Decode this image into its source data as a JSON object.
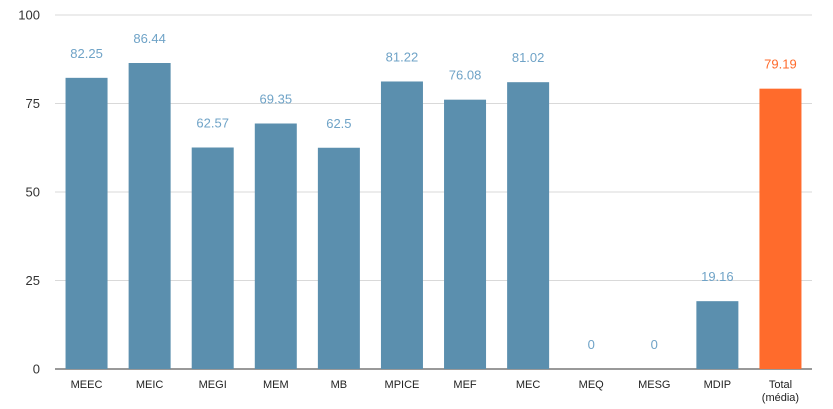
{
  "chart_data": {
    "type": "bar",
    "title": "",
    "xlabel": "",
    "ylabel": "",
    "ylim": [
      0,
      100
    ],
    "yticks": [
      0,
      25,
      50,
      75,
      100
    ],
    "grid": true,
    "categories": [
      "MEEC",
      "MEIC",
      "MEGI",
      "MEM",
      "MB",
      "MPICE",
      "MEF",
      "MEC",
      "MEQ",
      "MESG",
      "MDIP",
      "Total (média)"
    ],
    "values": [
      82.25,
      86.44,
      62.57,
      69.35,
      62.5,
      81.22,
      76.08,
      81.02,
      0,
      0,
      19.16,
      79.19
    ],
    "data_labels": [
      "82.25",
      "86.44",
      "62.57",
      "69.35",
      "62.5",
      "81.22",
      "76.08",
      "81.02",
      "0",
      "0",
      "19.16",
      "79.19"
    ],
    "colors": {
      "bar": "#5b8fae",
      "highlight_bar": "#ff6b2c",
      "label": "#6fa3c7",
      "highlight_label": "#ff6b2c"
    },
    "highlight_category": "Total (média)"
  }
}
